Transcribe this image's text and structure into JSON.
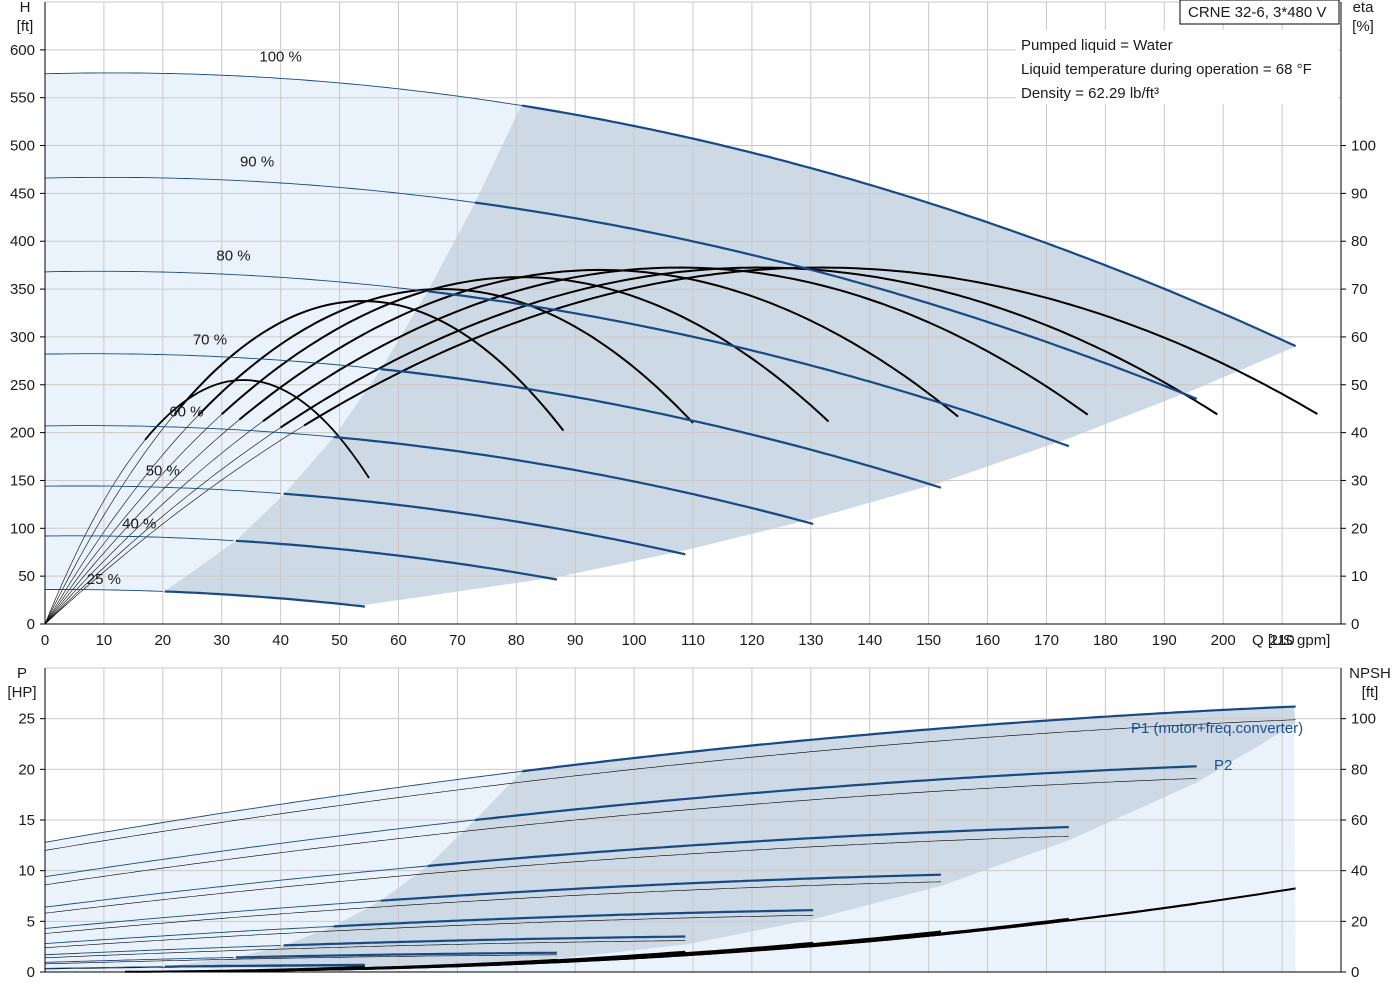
{
  "colors": {
    "range_fill": "#cdd9e5",
    "extended_fill": "#eaf3fb",
    "blue_curve": "#174a85",
    "black_curve": "#000000",
    "grid": "#c9c9c9",
    "axis": "#000000"
  },
  "info": {
    "model": "CRNE 32-6, 3*480 V",
    "lines": [
      "Pumped liquid = Water",
      "Liquid temperature during operation = 68 °F",
      "Density = 62.29 lb/ft³"
    ]
  },
  "chart_data": [
    {
      "type": "line",
      "name": "head-efficiency",
      "ylabel_left": [
        "H",
        "[ft]"
      ],
      "ylabel_right": [
        "eta",
        "[%]"
      ],
      "xlabel": "Q [US gpm]",
      "xlim": [
        0,
        220
      ],
      "ylim_left": [
        0,
        650
      ],
      "ylim_right": [
        0,
        130
      ],
      "x_ticks": [
        0,
        10,
        20,
        30,
        40,
        50,
        60,
        70,
        80,
        90,
        100,
        110,
        120,
        130,
        140,
        150,
        160,
        170,
        180,
        190,
        200,
        210
      ],
      "y_left_ticks": [
        0,
        50,
        100,
        150,
        200,
        250,
        300,
        350,
        400,
        450,
        500,
        550,
        600
      ],
      "y_right_ticks": [
        0,
        10,
        20,
        30,
        40,
        50,
        60,
        70,
        80,
        90,
        100
      ],
      "speeds": [
        {
          "label": "100 %",
          "label_at": [
            40,
            588
          ],
          "shutoff": 575,
          "max_rate": 212.3,
          "range_start_q": 81
        },
        {
          "label": "90 %",
          "label_at": [
            36,
            478
          ],
          "shutoff": 466,
          "max_rate": 195.5,
          "range_start_q": 73
        },
        {
          "label": "80 %",
          "label_at": [
            32,
            380
          ],
          "shutoff": 368,
          "max_rate": 173.8,
          "range_start_q": 65
        },
        {
          "label": "70 %",
          "label_at": [
            28,
            292
          ],
          "shutoff": 282,
          "max_rate": 152.1,
          "range_start_q": 57
        },
        {
          "label": "60 %",
          "label_at": [
            24,
            217
          ],
          "shutoff": 207,
          "max_rate": 130.4,
          "range_start_q": 49
        },
        {
          "label": "50 %",
          "label_at": [
            20,
            155
          ],
          "shutoff": 144,
          "max_rate": 108.7,
          "range_start_q": 40.5
        },
        {
          "label": "40 %",
          "label_at": [
            16,
            100
          ],
          "shutoff": 92,
          "max_rate": 86.9,
          "range_start_q": 32.4
        },
        {
          "label": "25 %",
          "label_at": [
            10,
            42
          ],
          "shutoff": 36,
          "max_rate": 54.3,
          "range_start_q": 20.3
        }
      ],
      "range_lower_boundary": [
        [
          20,
          34
        ],
        [
          54.3,
          20
        ],
        [
          86.9,
          49
        ],
        [
          108.7,
          77
        ],
        [
          130.4,
          110
        ],
        [
          152.1,
          148
        ],
        [
          173.8,
          194
        ],
        [
          195.5,
          246
        ],
        [
          212.3,
          290
        ]
      ],
      "range_upper_boundary": [
        [
          81,
          544
        ],
        [
          73,
          440
        ],
        [
          65,
          348
        ],
        [
          57,
          266
        ],
        [
          49,
          195
        ],
        [
          40.5,
          135
        ],
        [
          32.4,
          87
        ],
        [
          20.3,
          34
        ]
      ],
      "efficiency_peak_percent": [
        74.5,
        74.5,
        74.5,
        74,
        72.5,
        70,
        67.5,
        51
      ]
    },
    {
      "type": "line",
      "name": "power-npsh",
      "ylabel_left": [
        "P",
        "[HP]"
      ],
      "ylabel_right": [
        "NPSH",
        "[ft]"
      ],
      "xlim": [
        0,
        220
      ],
      "ylim_left": [
        0,
        30
      ],
      "ylim_right": [
        0,
        120
      ],
      "y_left_ticks": [
        0,
        5,
        10,
        15,
        20,
        25
      ],
      "y_right_ticks": [
        0,
        20,
        40,
        60,
        80,
        100
      ],
      "series_labels": {
        "p1": "P1 (motor+freq.converter)",
        "p2": "P2"
      },
      "power_p1_hp": [
        {
          "start": 12.8,
          "end": 26.2
        },
        {
          "start": 9.4,
          "end": 20.3
        },
        {
          "start": 6.4,
          "end": 14.3
        },
        {
          "start": 4.3,
          "end": 9.6
        },
        {
          "start": 2.8,
          "end": 6.1
        },
        {
          "start": 1.7,
          "end": 3.5
        },
        {
          "start": 0.95,
          "end": 1.9
        },
        {
          "start": 0.35,
          "end": 0.7
        }
      ],
      "power_p2_hp": [
        {
          "start": 12.0,
          "end": 24.9
        },
        {
          "start": 8.6,
          "end": 19.1
        },
        {
          "start": 5.8,
          "end": 13.4
        },
        {
          "start": 3.8,
          "end": 8.9
        },
        {
          "start": 2.4,
          "end": 5.6
        },
        {
          "start": 1.4,
          "end": 3.1
        },
        {
          "start": 0.8,
          "end": 1.7
        },
        {
          "start": 0.3,
          "end": 0.6
        }
      ],
      "npsh_end_ft": [
        33,
        27,
        21,
        16,
        11.5,
        8,
        4.8,
        2
      ]
    }
  ]
}
